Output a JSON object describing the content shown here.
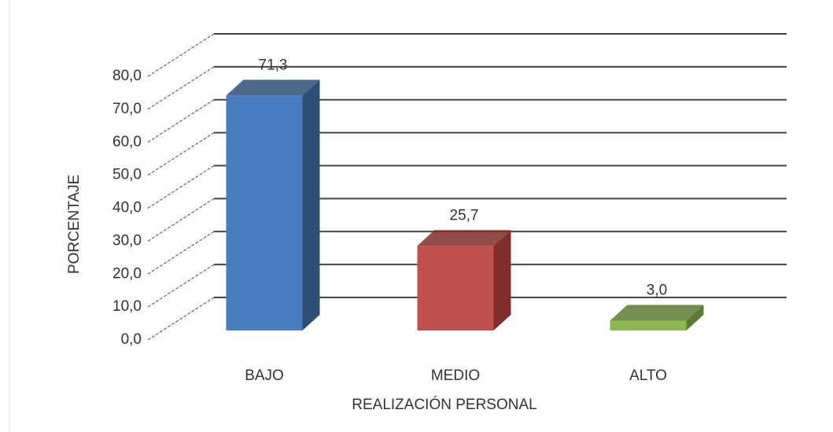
{
  "chart_data": {
    "type": "bar3d",
    "categories": [
      "BAJO",
      "MEDIO",
      "ALTO"
    ],
    "values": [
      71.3,
      25.7,
      3.0
    ],
    "value_labels": [
      "71,3",
      "25,7",
      "3,0"
    ],
    "colors": [
      "#4a7dbf",
      "#c0504d",
      "#8db84f"
    ],
    "side_colors": [
      "#2e4e75",
      "#7f2e2c",
      "#5d7a32"
    ],
    "ylabel": "PORCENTAJE",
    "xlabel": "REALIZACIÓN PERSONAL",
    "ylim": [
      0,
      80
    ],
    "yticks": [
      {
        "value": 0,
        "label": "0,0"
      },
      {
        "value": 10,
        "label": "10,0"
      },
      {
        "value": 20,
        "label": "20,0"
      },
      {
        "value": 30,
        "label": "30,0"
      },
      {
        "value": 40,
        "label": "40,0"
      },
      {
        "value": 50,
        "label": "50,0"
      },
      {
        "value": 60,
        "label": "60,0"
      },
      {
        "value": 70,
        "label": "70,0"
      },
      {
        "value": 80,
        "label": "80,0"
      }
    ],
    "grid": true
  }
}
